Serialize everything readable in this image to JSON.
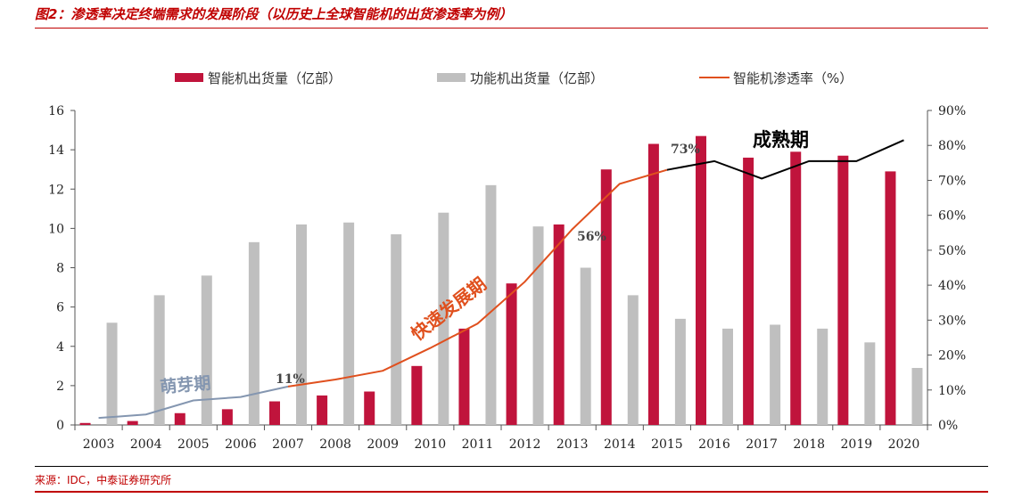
{
  "figure": {
    "title": "图2：渗透率决定终端需求的发展阶段（以历史上全球智能机的出货渗透率为例）",
    "source": "来源：IDC，中泰证券研究所"
  },
  "legend": {
    "smart_label": "智能机出货量（亿部）",
    "feature_label": "功能机出货量（亿部）",
    "rate_label": "智能机渗透率（%）"
  },
  "colors": {
    "smart": "#c0143c",
    "feature": "#bfbfbf",
    "rate_early": "#8496b0",
    "rate_growth": "#e0501e",
    "rate_mature": "#000000",
    "title": "#c00000"
  },
  "chart_data": {
    "type": "bar",
    "categories": [
      "2003",
      "2004",
      "2005",
      "2006",
      "2007",
      "2008",
      "2009",
      "2010",
      "2011",
      "2012",
      "2013",
      "2014",
      "2015",
      "2016",
      "2017",
      "2018",
      "2019",
      "2020"
    ],
    "series": [
      {
        "name": "智能机出货量（亿部）",
        "type": "bar",
        "axis": "left",
        "values": [
          0.1,
          0.2,
          0.6,
          0.8,
          1.2,
          1.5,
          1.7,
          3.0,
          4.9,
          7.2,
          10.2,
          13.0,
          14.3,
          14.7,
          13.6,
          13.9,
          13.7,
          12.9
        ]
      },
      {
        "name": "功能机出货量（亿部）",
        "type": "bar",
        "axis": "left",
        "values": [
          5.2,
          6.6,
          7.6,
          9.3,
          10.2,
          10.3,
          9.7,
          10.8,
          12.2,
          10.1,
          8.0,
          6.6,
          5.4,
          4.9,
          5.1,
          4.9,
          4.2,
          2.9
        ]
      },
      {
        "name": "智能机渗透率（%）",
        "type": "line",
        "axis": "right",
        "values": [
          2,
          3,
          7,
          8,
          11,
          13,
          15.5,
          22,
          29,
          41,
          56,
          69,
          73,
          75.5,
          70.5,
          75.5,
          75.5,
          81.5
        ]
      }
    ],
    "y_left": {
      "min": 0,
      "max": 16,
      "ticks": [
        "0",
        "2",
        "4",
        "6",
        "8",
        "10",
        "12",
        "14",
        "16"
      ]
    },
    "y_right": {
      "min": 0,
      "max": 90,
      "ticks": [
        "0%",
        "10%",
        "20%",
        "30%",
        "40%",
        "50%",
        "60%",
        "70%",
        "80%",
        "90%"
      ]
    },
    "annotations": {
      "p2007": "11%",
      "p2013": "56%",
      "p2015": "73%",
      "phase_early": "萌芽期",
      "phase_growth": "快速发展期",
      "phase_mature": "成熟期"
    },
    "legend_position": "top",
    "grid": false
  }
}
